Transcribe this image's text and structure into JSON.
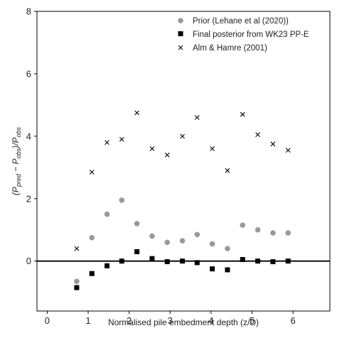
{
  "chart_data": {
    "type": "scatter",
    "title": "",
    "xlabel": "Normalised pile embedment depth (z/D)",
    "ylabel": "(P_pred − P_obs)/P_obs",
    "xlim": [
      -0.25,
      6.9
    ],
    "ylim": [
      -1.6,
      8
    ],
    "xticks": [
      0,
      1,
      2,
      3,
      4,
      5,
      6
    ],
    "yticks": [
      0,
      2,
      4,
      6,
      8
    ],
    "grid": false,
    "legend_position": "top-right",
    "reference_line": {
      "y": 0,
      "color": "#000000"
    },
    "series": [
      {
        "name": "Prior (Lehane et al (2020))",
        "marker": "circle",
        "color": "#999999",
        "x": [
          0.72,
          1.09,
          1.46,
          1.82,
          2.19,
          2.56,
          2.93,
          3.3,
          3.66,
          4.03,
          4.4,
          4.77,
          5.14,
          5.51,
          5.88
        ],
        "y": [
          -0.65,
          0.75,
          1.5,
          1.95,
          1.2,
          0.8,
          0.6,
          0.65,
          0.85,
          0.55,
          0.4,
          1.15,
          1.0,
          0.9,
          0.9
        ]
      },
      {
        "name": "Final posterior from WK23 PP-E",
        "marker": "square",
        "color": "#000000",
        "x": [
          0.72,
          1.09,
          1.46,
          1.82,
          2.19,
          2.56,
          2.93,
          3.3,
          3.66,
          4.03,
          4.4,
          4.77,
          5.14,
          5.51,
          5.88
        ],
        "y": [
          -0.85,
          -0.4,
          -0.15,
          0.0,
          0.3,
          0.08,
          -0.02,
          0.0,
          -0.05,
          -0.25,
          -0.28,
          0.05,
          0.0,
          -0.02,
          0.0
        ]
      },
      {
        "name": "Alm & Hamre (2001)",
        "marker": "x",
        "color": "#000000",
        "x": [
          0.72,
          1.09,
          1.46,
          1.82,
          2.19,
          2.56,
          2.93,
          3.3,
          3.66,
          4.03,
          4.4,
          4.77,
          5.14,
          5.51,
          5.88
        ],
        "y": [
          0.4,
          2.85,
          3.8,
          3.9,
          4.75,
          3.6,
          3.4,
          4.0,
          4.6,
          3.6,
          2.9,
          4.7,
          4.05,
          3.75,
          3.55
        ]
      }
    ]
  }
}
